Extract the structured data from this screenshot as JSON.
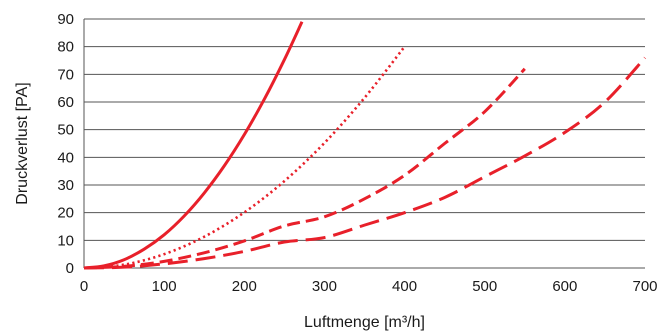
{
  "chart_data": {
    "type": "line",
    "xlabel": "Luftmenge [m³/h]",
    "ylabel": "Druckverlust [PA]",
    "xlim": [
      0,
      700
    ],
    "ylim": [
      0,
      90
    ],
    "xticks": [
      "0",
      "100",
      "200",
      "300",
      "400",
      "500",
      "600",
      "700"
    ],
    "yticks": [
      "0",
      "10",
      "20",
      "30",
      "40",
      "50",
      "60",
      "70",
      "80",
      "90"
    ],
    "grid": "horizontal",
    "color": "#e8202a",
    "series": [
      {
        "style": "solid",
        "x": [
          0,
          25,
          50,
          75,
          100,
          125,
          150,
          175,
          200,
          225,
          250,
          272
        ],
        "y": [
          0,
          0.8,
          3.0,
          6.8,
          12.0,
          18.8,
          27.1,
          36.9,
          48.2,
          61.0,
          75.3,
          89.0
        ]
      },
      {
        "style": "dotted",
        "x": [
          0,
          50,
          100,
          150,
          200,
          250,
          300,
          350,
          400
        ],
        "y": [
          0,
          1.2,
          5.0,
          11.3,
          20.1,
          31.4,
          45.2,
          61.5,
          80.0
        ]
      },
      {
        "style": "dashed",
        "x": [
          0,
          50,
          100,
          150,
          200,
          250,
          300,
          350,
          400,
          450,
          500,
          550
        ],
        "y": [
          0,
          0.6,
          2.4,
          5.5,
          9.8,
          15.2,
          18.5,
          25.0,
          33.5,
          45.0,
          56.5,
          72.0
        ]
      },
      {
        "style": "long-dashed",
        "x": [
          0,
          50,
          100,
          150,
          200,
          250,
          300,
          350,
          400,
          450,
          500,
          550,
          600,
          650,
          700
        ],
        "y": [
          0,
          0.3,
          1.5,
          3.4,
          6.0,
          9.4,
          11.0,
          15.5,
          20.0,
          25.5,
          33.0,
          40.5,
          49.0,
          60.0,
          76.0
        ]
      }
    ]
  }
}
